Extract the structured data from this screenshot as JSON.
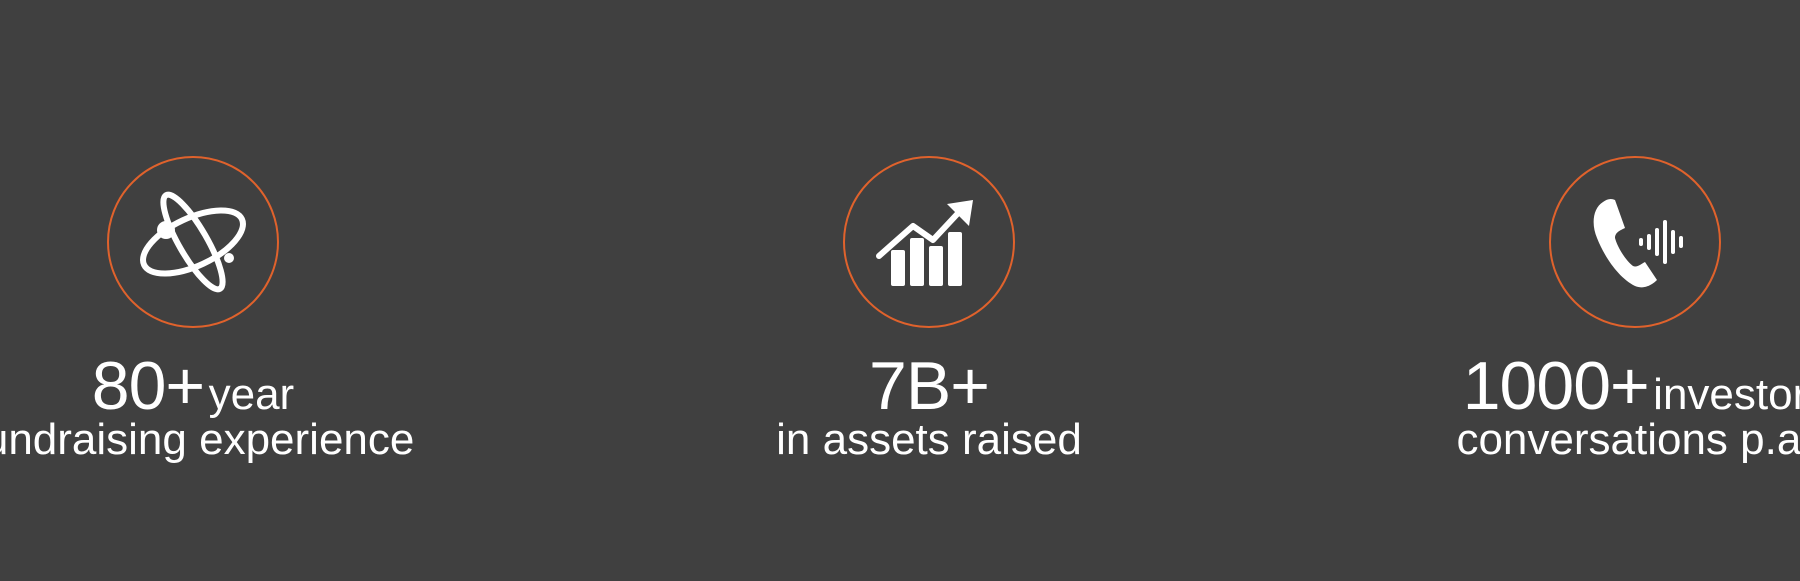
{
  "accent_color": "#e0622c",
  "background_color": "#404040",
  "stats": [
    {
      "icon": "atom-icon",
      "number": "80+",
      "suffix": "year",
      "label": "fundraising experience"
    },
    {
      "icon": "growth-chart-icon",
      "number": "7B+",
      "suffix": "",
      "label": "in assets raised"
    },
    {
      "icon": "phone-call-icon",
      "number": "1000+",
      "suffix": "investor",
      "label": "conversations p.a."
    }
  ]
}
